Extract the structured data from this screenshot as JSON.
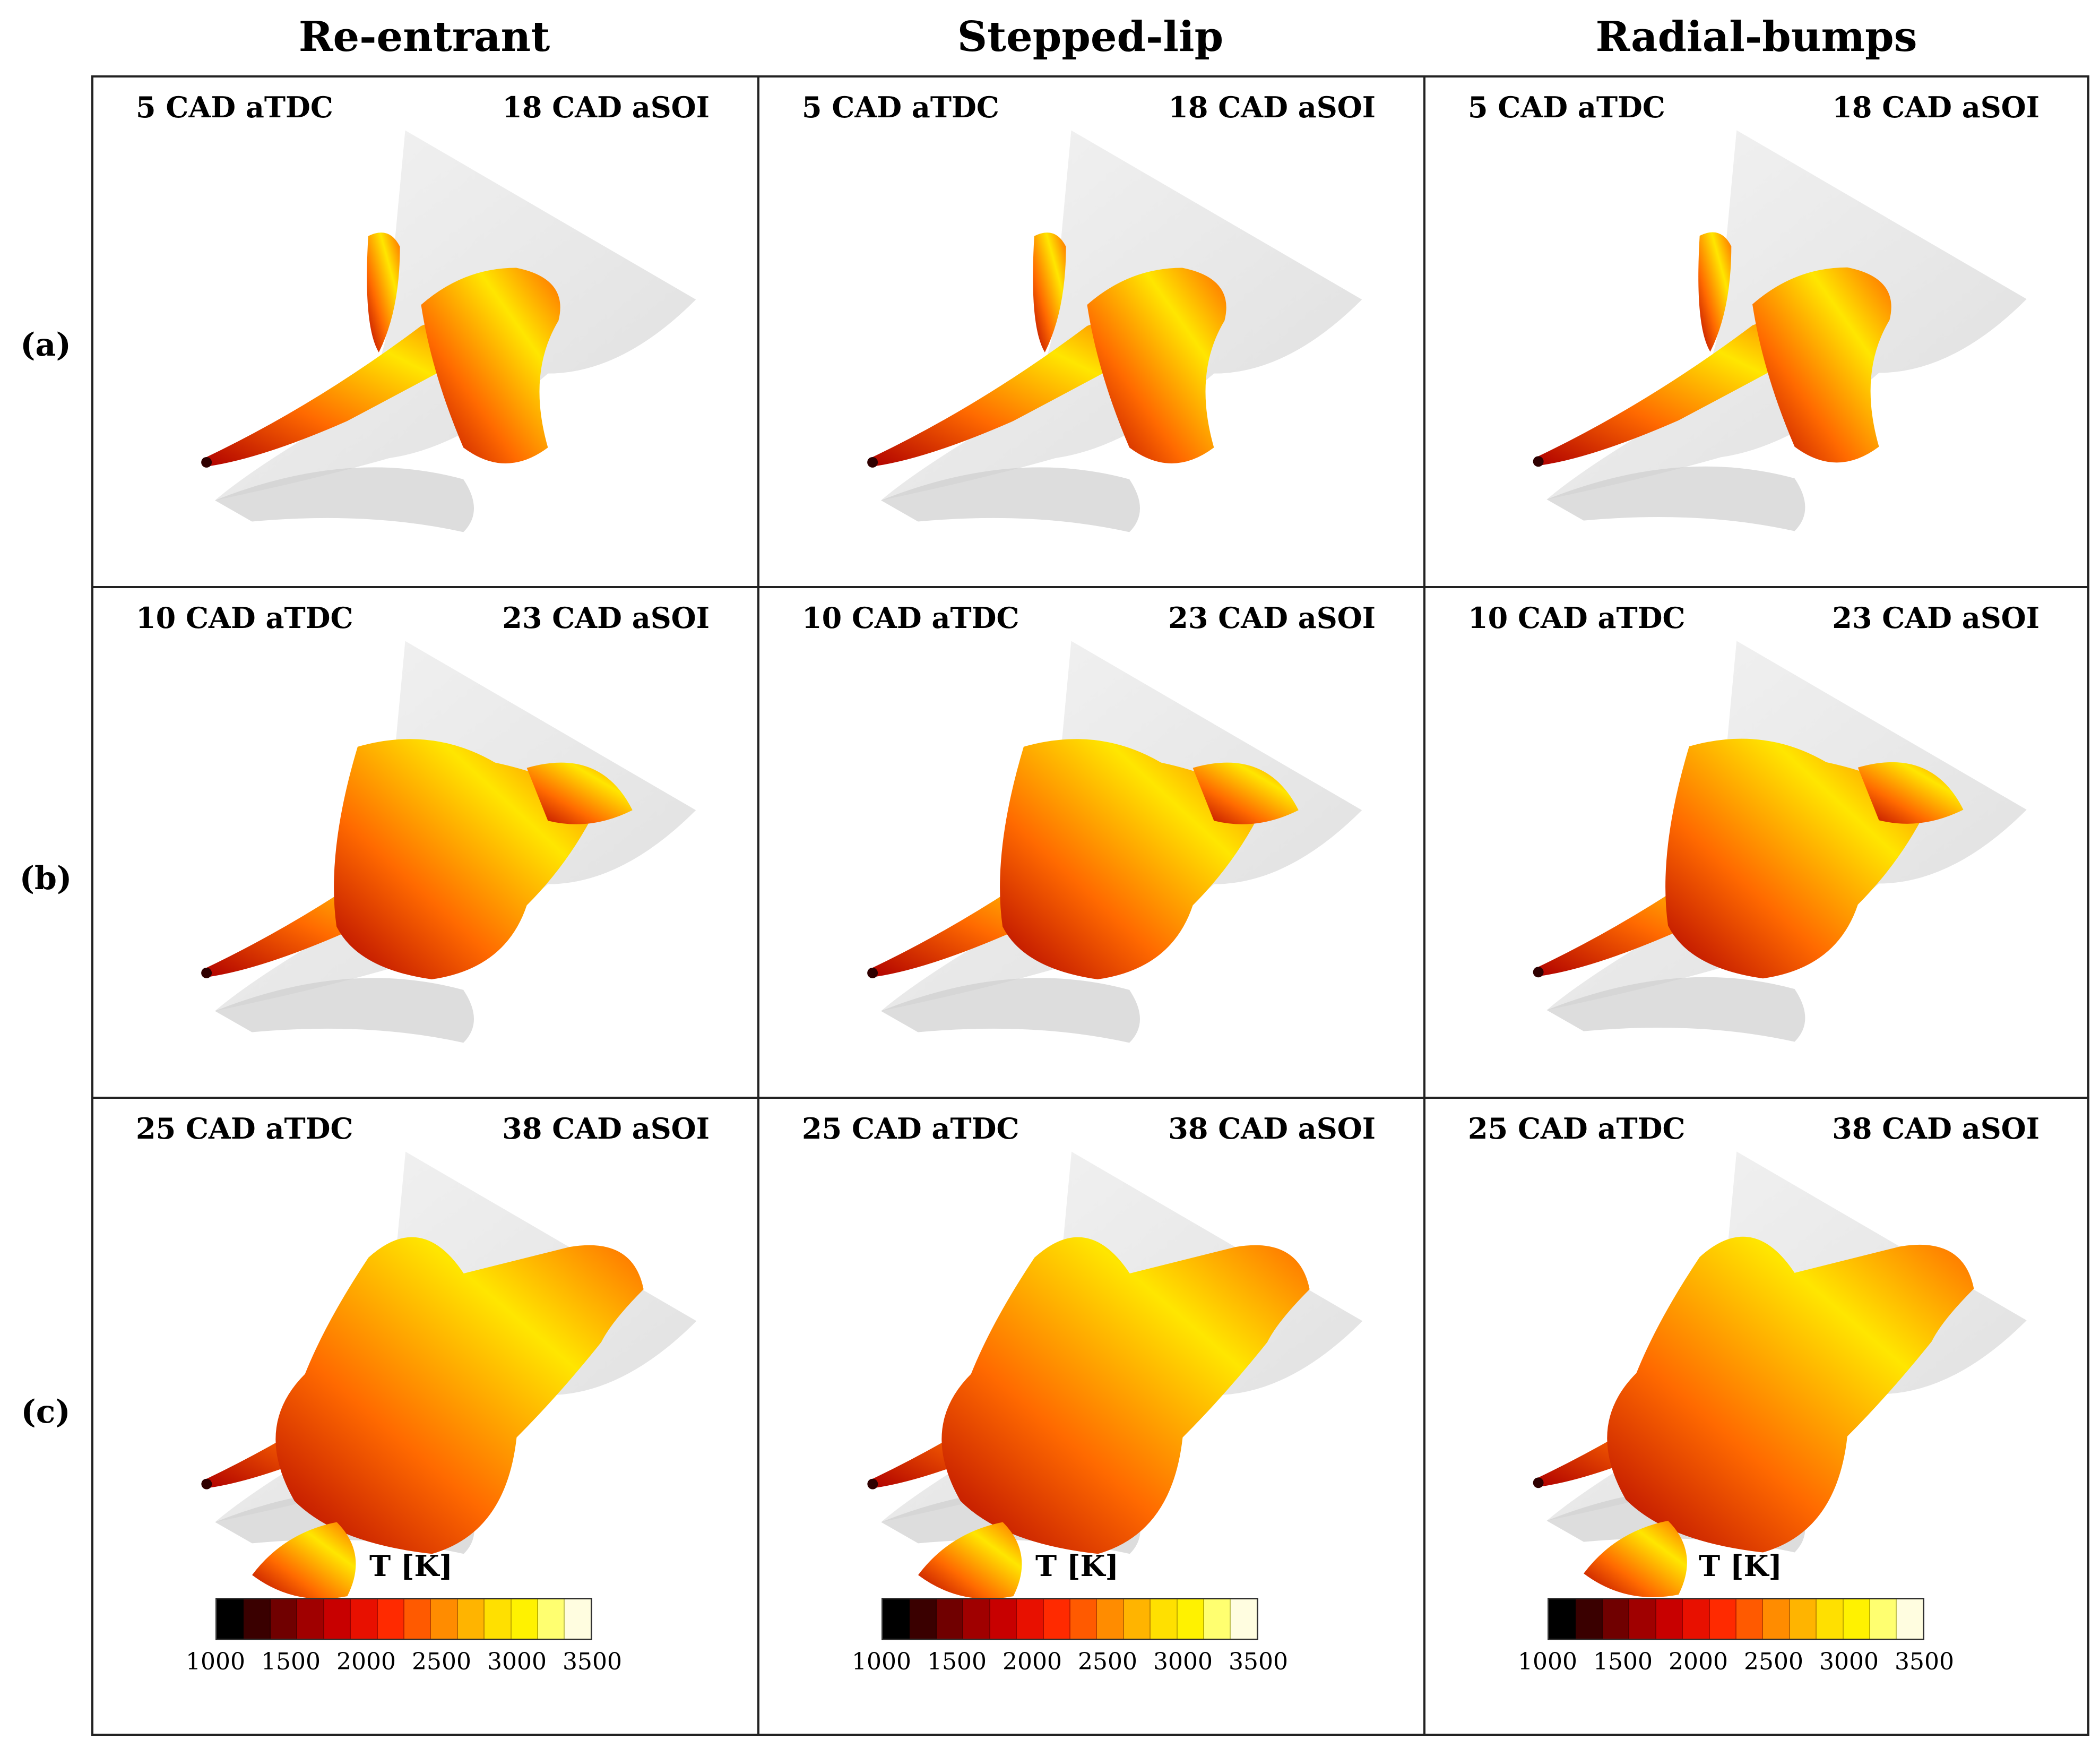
{
  "columns": [
    {
      "title": "Re-entrant"
    },
    {
      "title": "Stepped-lip"
    },
    {
      "title": "Radial-bumps"
    }
  ],
  "rows": [
    {
      "label": "(a)",
      "left": "5 CAD aTDC",
      "right": "18 CAD aSOI"
    },
    {
      "label": "(b)",
      "left": "10 CAD aTDC",
      "right": "23 CAD aSOI"
    },
    {
      "label": "(c)",
      "left": "25 CAD aTDC",
      "right": "38 CAD aSOI"
    }
  ],
  "legend": {
    "title": "T [K]",
    "ticks": [
      "1000",
      "1500",
      "2000",
      "2500",
      "3000",
      "3500"
    ],
    "colors": [
      "#000000",
      "#3a0000",
      "#700000",
      "#a00000",
      "#c80000",
      "#e81000",
      "#ff2a00",
      "#ff5a00",
      "#ff8c00",
      "#ffb400",
      "#ffe000",
      "#fff200",
      "#ffff70",
      "#fffde0"
    ]
  },
  "flame_colors": {
    "cool": "#b00000",
    "mid": "#ff6a00",
    "hot": "#ffe600",
    "bowl": "#d8d8d8"
  }
}
